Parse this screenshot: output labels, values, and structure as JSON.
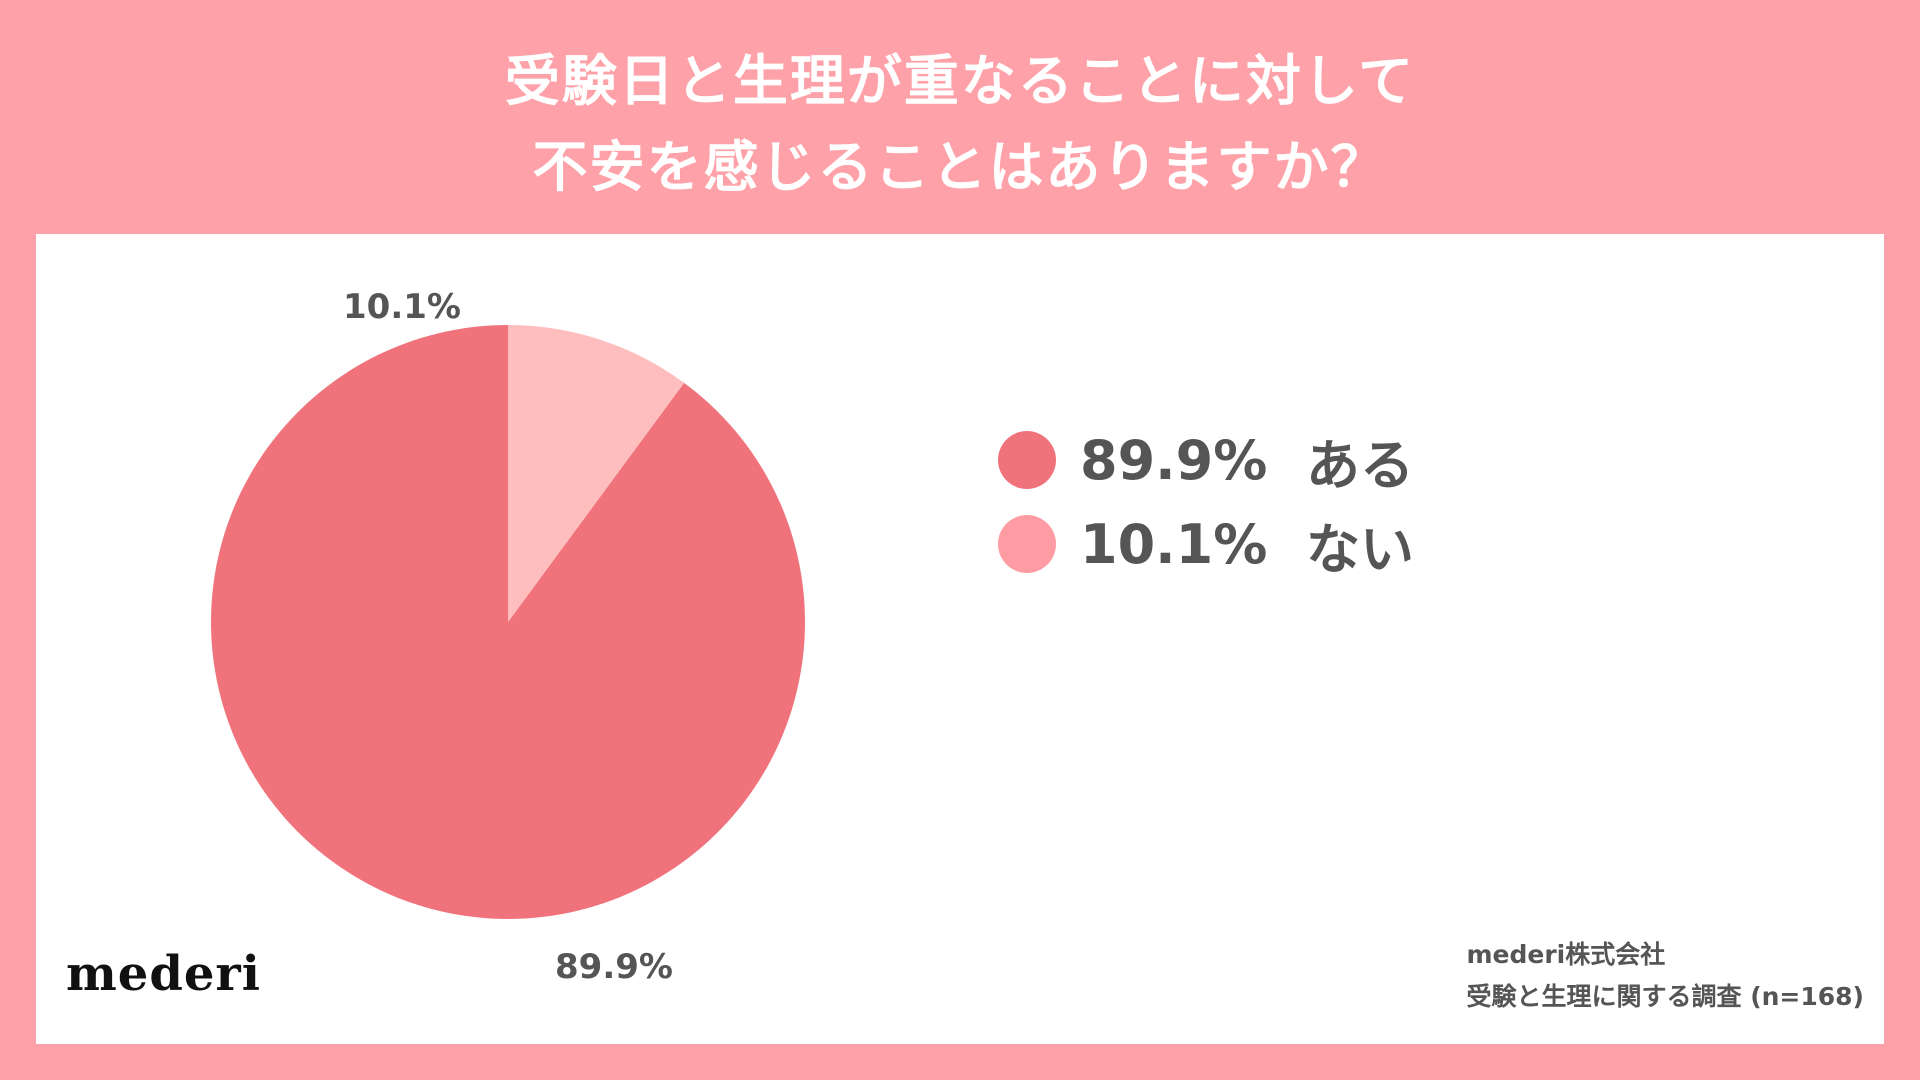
{
  "title": {
    "line1": "受験日と生理が重なることに対して",
    "line2": "不安を感じることはありますか？"
  },
  "colors": {
    "background": "#FFA1A8",
    "panel": "#FFFFFF",
    "text": "#555555"
  },
  "chart_data": {
    "type": "pie",
    "title": "受験日と生理が重なることに対して不安を感じることはありますか？",
    "categories": [
      "ある",
      "ない"
    ],
    "values": [
      89.9,
      10.1
    ],
    "value_labels": [
      "89.9%",
      "10.1%"
    ],
    "colors": [
      "#F0737C",
      "#FFBEBE"
    ],
    "legend_placement": "right"
  },
  "legend": [
    {
      "value": "89.9%",
      "label": "ある",
      "color": "#F0737C"
    },
    {
      "value": "10.1%",
      "label": "ない",
      "color": "#FF9CA3"
    }
  ],
  "logo": {
    "text": "mederi"
  },
  "source": {
    "line1": "mederi株式会社",
    "line2": "受験と生理に関する調査 (n=168)"
  }
}
